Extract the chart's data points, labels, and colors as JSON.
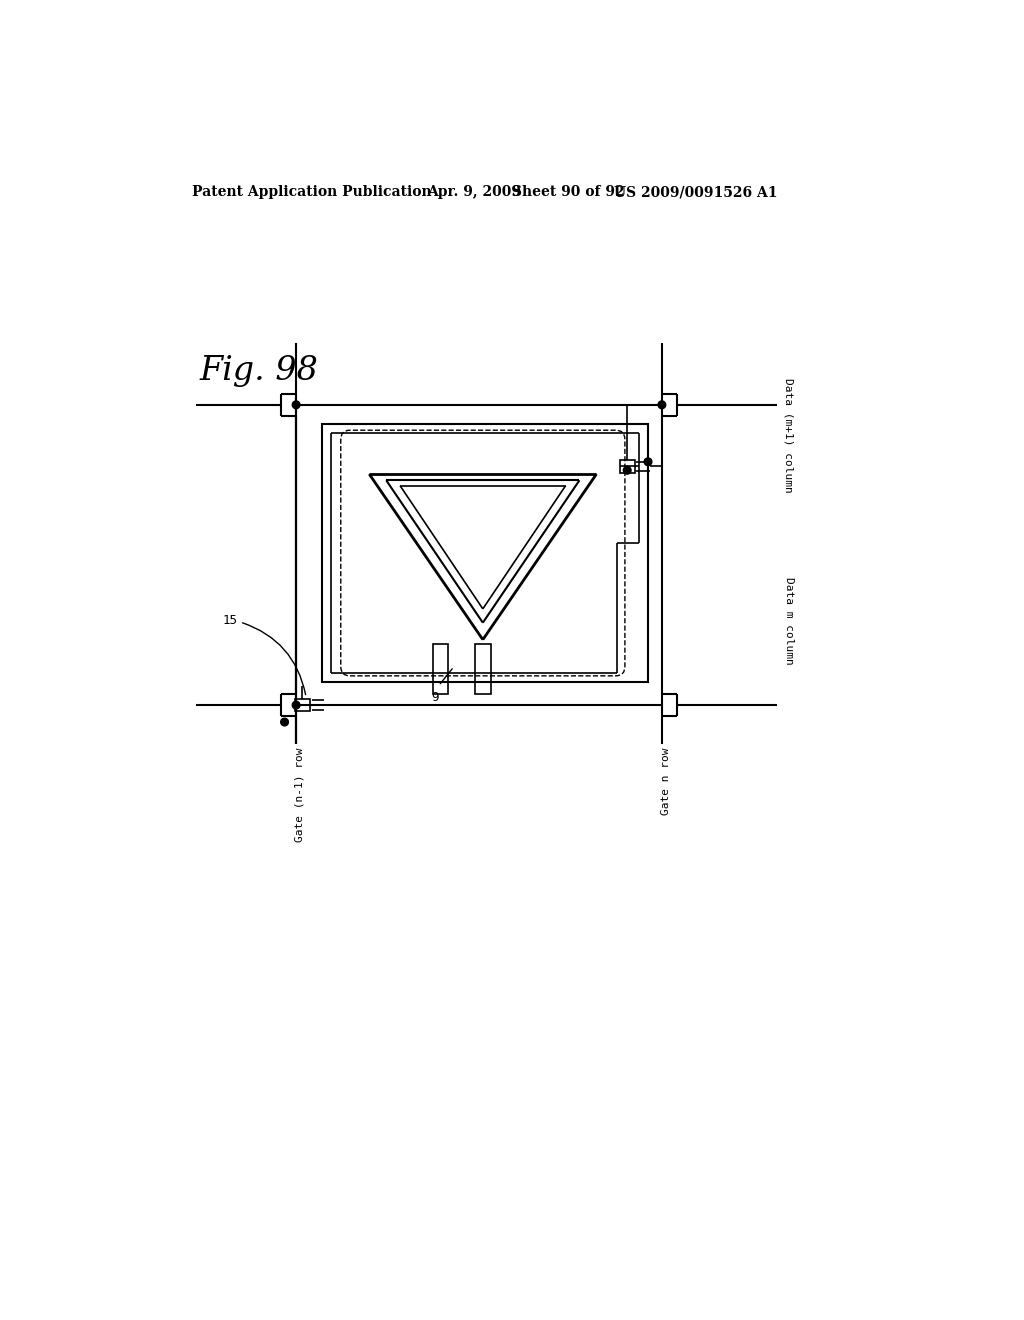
{
  "bg_color": "#ffffff",
  "line_color": "#000000",
  "header_text": "Patent Application Publication",
  "header_date": "Apr. 9, 2009",
  "header_sheet": "Sheet 90 of 92",
  "header_patent": "US 2009/0091526 A1",
  "fig_label": "Fig. 98",
  "label_15": "15",
  "label_9": "9",
  "label_gate_n1": "Gate (n-1) row",
  "label_gate_n": "Gate n row",
  "label_data_m": "Data m column",
  "label_data_m1": "Data (m+1) column"
}
